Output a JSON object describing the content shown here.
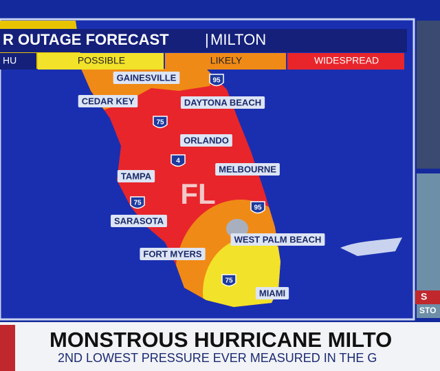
{
  "header": {
    "title": "R OUTAGE FORECAST",
    "storm": "MILTON"
  },
  "legend": [
    "HU",
    "POSSIBLE",
    "LIKELY",
    "WIDESPREAD"
  ],
  "cities": [
    "GAINESVILLE",
    "CEDAR KEY",
    "DAYTONA BEACH",
    "ORLANDO",
    "MELBOURNE",
    "TAMPA",
    "SARASOTA",
    "WEST PALM BEACH",
    "FORT MYERS",
    "MIAMI"
  ],
  "highways": [
    "95",
    "75",
    "4",
    "75",
    "95",
    "75"
  ],
  "state_label": "FL",
  "ticker": {
    "headline": "MONSTROUS HURRICANE MILTO",
    "subheadline": "2ND LOWEST PRESSURE EVER MEASURED IN THE G"
  },
  "side": {
    "badge": "S",
    "caption": "STO"
  }
}
